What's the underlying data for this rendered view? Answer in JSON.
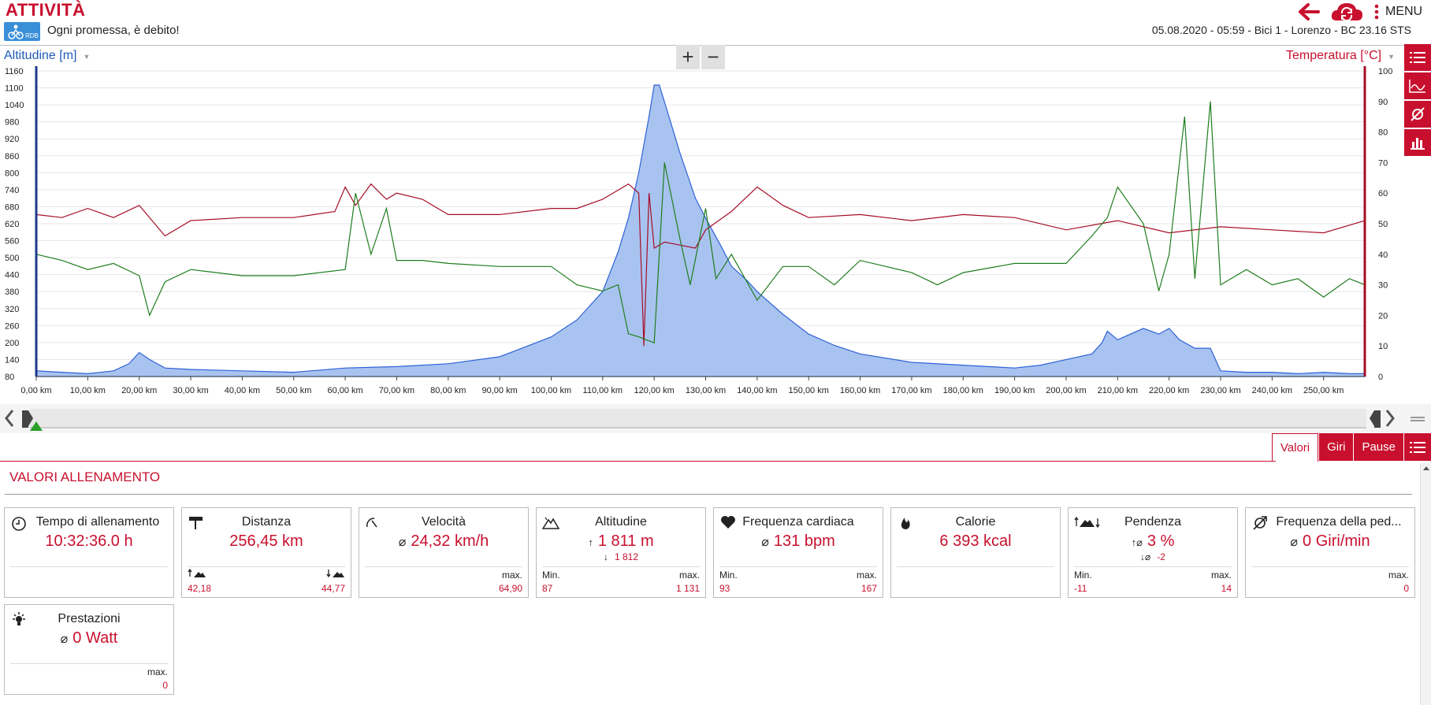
{
  "header": {
    "title": "ATTIVITÀ",
    "motto": "Ogni promessa, è debito!",
    "logo_text": "RDB",
    "session_info": "05.08.2020  -  05:59  -  Bici 1  -  Lorenzo  -  BC 23.16 STS",
    "menu_label": "MENU",
    "icons": [
      "back-arrow-icon",
      "cloud-sync-icon",
      "menu-dots-icon"
    ]
  },
  "chart": {
    "left_axis_label": "Altitudine [m]",
    "right_axis_label": "Temperatura [°C]",
    "zoom_in": "+",
    "zoom_out": "−"
  },
  "chart_data": {
    "type": "line",
    "xlabel": "",
    "x_unit": "km",
    "xlim": [
      0,
      258
    ],
    "x_ticks": [
      "0,00 km",
      "10,00 km",
      "20,00 km",
      "30,00 km",
      "40,00 km",
      "50,00 km",
      "60,00 km",
      "70,00 km",
      "80,00 km",
      "90,00 km",
      "100,00 km",
      "110,00 km",
      "120,00 km",
      "130,00 km",
      "140,00 km",
      "150,00 km",
      "160,00 km",
      "170,00 km",
      "180,00 km",
      "190,00 km",
      "200,00 km",
      "210,00 km",
      "220,00 km",
      "230,00 km",
      "240,00 km",
      "250,00 km"
    ],
    "y_left": {
      "label": "Altitudine [m]",
      "ylim": [
        80,
        1160
      ],
      "ticks": [
        1160,
        1100,
        1040,
        980,
        920,
        860,
        800,
        740,
        680,
        620,
        560,
        500,
        440,
        380,
        320,
        260,
        200,
        140,
        80
      ]
    },
    "y_right": {
      "label": "Temperatura [°C]",
      "ylim": [
        0,
        100
      ],
      "ticks": [
        100,
        90,
        80,
        70,
        60,
        50,
        40,
        30,
        20,
        10,
        0
      ]
    },
    "grid": true,
    "colors": {
      "altitude_fill": "#a9c3f0",
      "altitude_line": "#2d62d6",
      "red_series": "#a50d26",
      "green_series": "#1e7d1e"
    },
    "series": [
      {
        "axis": "left",
        "style": "area",
        "x": [
          0,
          5,
          10,
          15,
          18,
          20,
          22,
          25,
          30,
          40,
          50,
          60,
          70,
          80,
          90,
          95,
          100,
          105,
          110,
          113,
          115,
          117,
          119,
          120,
          121,
          122,
          125,
          128,
          130,
          133,
          135,
          138,
          140,
          145,
          150,
          155,
          160,
          170,
          180,
          190,
          195,
          200,
          205,
          207,
          208,
          210,
          215,
          218,
          220,
          222,
          225,
          228,
          230,
          235,
          240,
          245,
          250,
          255,
          258
        ],
        "y": [
          100,
          95,
          90,
          100,
          125,
          165,
          140,
          110,
          105,
          100,
          95,
          110,
          115,
          125,
          150,
          185,
          220,
          280,
          380,
          520,
          640,
          800,
          1000,
          1110,
          1110,
          1050,
          870,
          710,
          640,
          540,
          470,
          420,
          380,
          300,
          230,
          190,
          160,
          130,
          120,
          110,
          120,
          140,
          160,
          200,
          240,
          210,
          250,
          230,
          250,
          210,
          180,
          180,
          100,
          95,
          95,
          90,
          95,
          90,
          90
        ]
      },
      {
        "axis": "right",
        "style": "line",
        "x": [
          0,
          5,
          10,
          15,
          20,
          25,
          30,
          40,
          50,
          58,
          60,
          62,
          65,
          68,
          70,
          75,
          80,
          90,
          100,
          105,
          110,
          115,
          117,
          118,
          119,
          120,
          122,
          125,
          128,
          130,
          135,
          140,
          145,
          150,
          160,
          170,
          180,
          190,
          200,
          210,
          220,
          230,
          240,
          250,
          258
        ],
        "y": [
          53,
          52,
          55,
          52,
          56,
          46,
          51,
          52,
          52,
          54,
          62,
          56,
          63,
          58,
          60,
          58,
          53,
          53,
          55,
          55,
          58,
          63,
          60,
          10,
          60,
          42,
          44,
          43,
          42,
          48,
          54,
          62,
          56,
          52,
          53,
          51,
          53,
          52,
          48,
          51,
          47,
          49,
          48,
          47,
          51
        ]
      },
      {
        "axis": "right",
        "style": "line",
        "x": [
          0,
          5,
          10,
          15,
          20,
          22,
          25,
          30,
          40,
          50,
          60,
          62,
          65,
          68,
          70,
          75,
          80,
          90,
          100,
          105,
          110,
          113,
          115,
          117,
          120,
          122,
          125,
          127,
          130,
          132,
          135,
          140,
          145,
          150,
          155,
          160,
          170,
          175,
          180,
          190,
          200,
          205,
          208,
          210,
          215,
          218,
          220,
          223,
          225,
          228,
          230,
          235,
          240,
          245,
          250,
          255,
          258
        ],
        "y": [
          40,
          38,
          35,
          37,
          33,
          20,
          31,
          35,
          33,
          33,
          35,
          60,
          40,
          55,
          38,
          38,
          37,
          36,
          36,
          30,
          28,
          30,
          14,
          13,
          11,
          70,
          45,
          30,
          55,
          32,
          40,
          25,
          36,
          36,
          30,
          38,
          34,
          30,
          34,
          37,
          37,
          46,
          52,
          62,
          50,
          28,
          40,
          85,
          32,
          90,
          30,
          35,
          30,
          32,
          26,
          32,
          30
        ]
      }
    ]
  },
  "range_slider": {
    "start_km": 0,
    "end_km": 258
  },
  "tabs": [
    {
      "label": "Valori",
      "active": true
    },
    {
      "label": "Giri",
      "active": false
    },
    {
      "label": "Pause",
      "active": false
    }
  ],
  "section_title": "VALORI ALLENAMENTO",
  "cards": [
    {
      "title": "Tempo di allenamento",
      "icon": "clock-icon",
      "value": "10:32:36.0 h"
    },
    {
      "title": "Distanza",
      "icon": "signpost-icon",
      "value": "256,45 km",
      "left_value": "42,18",
      "right_value": "44,77",
      "left_icon": "uphill-icon",
      "right_icon": "downhill-icon"
    },
    {
      "title": "Velocità",
      "icon": "speedometer-icon",
      "value": "24,32 km/h",
      "avg": "⌀",
      "right_label": "max.",
      "right_value": "64,90"
    },
    {
      "title": "Altitudine",
      "icon": "mountain-icon",
      "value": "1 811 m",
      "value_prefix": "↑",
      "sub_value": "1 812",
      "sub_prefix": "↓",
      "left_label": "Min.",
      "left_value": "87",
      "right_label": "max.",
      "right_value": "1 131"
    },
    {
      "title": "Frequenza cardiaca",
      "icon": "heart-icon",
      "value": "131 bpm",
      "avg": "⌀",
      "left_label": "Min.",
      "left_value": "93",
      "right_label": "max.",
      "right_value": "167"
    },
    {
      "title": "Calorie",
      "icon": "flame-icon",
      "value": "6 393 kcal"
    },
    {
      "title": "Pendenza",
      "icon": "slope-icon",
      "value": "3 %",
      "value_prefix": "↑⌀",
      "sub_value": "-2",
      "sub_prefix": "↓⌀",
      "left_label": "Min.",
      "left_value": "-11",
      "right_label": "max.",
      "right_value": "14"
    },
    {
      "title": "Frequenza della ped...",
      "icon": "cadence-icon",
      "value": "0 Giri/min",
      "avg": "⌀",
      "right_label": "max.",
      "right_value": "0"
    },
    {
      "title": "Prestazioni",
      "icon": "bulb-icon",
      "value": "0 Watt",
      "avg": "⌀",
      "right_label": "max.",
      "right_value": "0"
    }
  ]
}
